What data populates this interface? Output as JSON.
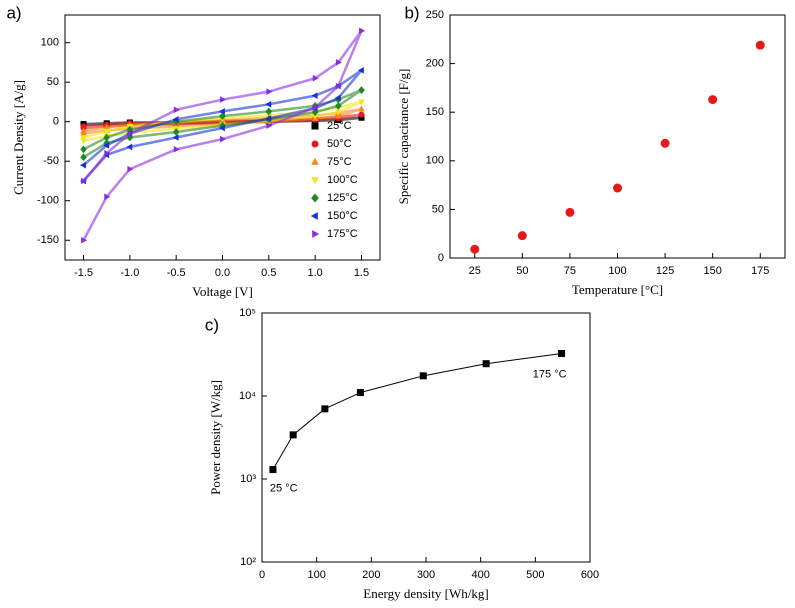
{
  "chart_data": [
    {
      "type": "scatter",
      "panel_label": "a)",
      "x_label": "Voltage [V]",
      "y_label": "Current Density [A/g]",
      "x": [
        -1.5,
        -1.25,
        -1,
        -0.5,
        0,
        0.5,
        1,
        1.25,
        1.5,
        1.25,
        1,
        0.5,
        0,
        -0.5,
        -1,
        -1.25,
        -1.5
      ],
      "xlim": [
        -1.7,
        1.7
      ],
      "xticks": [
        -1.5,
        {
          "value": -1,
          "label": "-1.0"
        },
        -0.5,
        {
          "value": 0,
          "label": "0.0"
        },
        0.5,
        {
          "value": 1,
          "label": "1.0"
        },
        1.5
      ],
      "ylim": [
        -175,
        135
      ],
      "yticks": [
        -150,
        -100,
        -50,
        0,
        50,
        100
      ],
      "legend": "lower right",
      "series": [
        {
          "name": "25°C",
          "color": "#000000",
          "marker": "square",
          "values": [
            -3,
            -2,
            -1,
            -1,
            0,
            1,
            2,
            3,
            5,
            2,
            1,
            0,
            -1,
            -2,
            -3,
            -3,
            -4
          ]
        },
        {
          "name": "50°C",
          "color": "#e8191b",
          "marker": "circle",
          "values": [
            -6,
            -4,
            -2,
            -1,
            1,
            2,
            4,
            6,
            9,
            4,
            2,
            0,
            -2,
            -3,
            -5,
            -6,
            -8
          ]
        },
        {
          "name": "75°C",
          "color": "#f7871f",
          "marker": "triangle-up",
          "values": [
            -12,
            -7,
            -4,
            -1,
            2,
            5,
            8,
            11,
            16,
            7,
            4,
            0,
            -3,
            -6,
            -9,
            -11,
            -15
          ]
        },
        {
          "name": "100°C",
          "color": "#f6e51a",
          "marker": "triangle-down",
          "values": [
            -20,
            -12,
            -6,
            0,
            4,
            8,
            13,
            18,
            25,
            12,
            7,
            1,
            -4,
            -9,
            -14,
            -18,
            -24
          ]
        },
        {
          "name": "125°C",
          "color": "#1f8a1f",
          "marker": "diamond",
          "values": [
            -35,
            -20,
            -10,
            0,
            7,
            13,
            20,
            28,
            40,
            20,
            12,
            3,
            -5,
            -13,
            -20,
            -27,
            -45
          ]
        },
        {
          "name": "150°C",
          "color": "#1432d6",
          "marker": "triangle-left",
          "values": [
            -55,
            -30,
            -15,
            3,
            13,
            22,
            33,
            45,
            65,
            30,
            17,
            4,
            -8,
            -20,
            -32,
            -42,
            -75
          ]
        },
        {
          "name": "175°C",
          "color": "#8a2be2",
          "marker": "triangle-right",
          "values": [
            -75,
            -40,
            -15,
            15,
            28,
            38,
            55,
            75,
            115,
            45,
            18,
            -5,
            -22,
            -35,
            -60,
            -95,
            -150
          ]
        }
      ]
    },
    {
      "type": "scatter",
      "panel_label": "b)",
      "x_label": "Temperature [°C]",
      "y_label": "Specific capacitance [F/g]",
      "x": [
        25,
        50,
        75,
        100,
        125,
        150,
        175
      ],
      "values": [
        9,
        23,
        47,
        72,
        118,
        163,
        219
      ],
      "color": "#e8191b",
      "marker": "circle",
      "xlim": [
        12,
        188
      ],
      "xticks": [
        25,
        50,
        75,
        100,
        125,
        150,
        175
      ],
      "ylim": [
        0,
        250
      ],
      "yticks": [
        0,
        50,
        100,
        150,
        200,
        250
      ]
    },
    {
      "type": "line",
      "panel_label": "c)",
      "x_label": "Energy density [Wh/kg]",
      "y_label": "Power density [W/kg]",
      "x": [
        20,
        57,
        115,
        180,
        295,
        410,
        548
      ],
      "values": [
        1300,
        3400,
        7000,
        11000,
        17500,
        24500,
        32500
      ],
      "color": "#000000",
      "marker": "square",
      "log_y": true,
      "annotations": [
        "25 °C",
        "175 °C"
      ],
      "xlim": [
        0,
        600
      ],
      "xticks": [
        0,
        100,
        200,
        300,
        400,
        500,
        600
      ],
      "ylim": [
        100,
        100000
      ],
      "yticks": [
        {
          "value": 100,
          "label": "10²"
        },
        {
          "value": 1000,
          "label": "10³"
        },
        {
          "value": 10000,
          "label": "10⁴"
        },
        {
          "value": 100000,
          "label": "10⁵"
        }
      ]
    }
  ]
}
